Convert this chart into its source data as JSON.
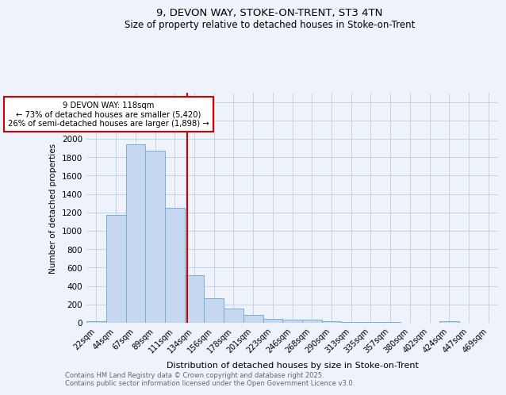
{
  "title1": "9, DEVON WAY, STOKE-ON-TRENT, ST3 4TN",
  "title2": "Size of property relative to detached houses in Stoke-on-Trent",
  "xlabel": "Distribution of detached houses by size in Stoke-on-Trent",
  "ylabel": "Number of detached properties",
  "categories": [
    "22sqm",
    "44sqm",
    "67sqm",
    "89sqm",
    "111sqm",
    "134sqm",
    "156sqm",
    "178sqm",
    "201sqm",
    "223sqm",
    "246sqm",
    "268sqm",
    "290sqm",
    "313sqm",
    "335sqm",
    "357sqm",
    "380sqm",
    "402sqm",
    "424sqm",
    "447sqm",
    "469sqm"
  ],
  "values": [
    20,
    1170,
    1940,
    1870,
    1250,
    520,
    270,
    155,
    90,
    45,
    35,
    35,
    15,
    10,
    8,
    5,
    3,
    2,
    15,
    2,
    1
  ],
  "bar_color": "#c5d8f0",
  "bar_edge_color": "#7aaed6",
  "red_line_x": 4.62,
  "annotation_text": "9 DEVON WAY: 118sqm\n← 73% of detached houses are smaller (5,420)\n26% of semi-detached houses are larger (1,898) →",
  "annotation_box_color": "#ffffff",
  "annotation_box_edge": "#cc0000",
  "ylim": [
    0,
    2500
  ],
  "yticks": [
    0,
    200,
    400,
    600,
    800,
    1000,
    1200,
    1400,
    1600,
    1800,
    2000,
    2200,
    2400
  ],
  "footer1": "Contains HM Land Registry data © Crown copyright and database right 2025.",
  "footer2": "Contains public sector information licensed under the Open Government Licence v3.0.",
  "bg_color": "#eef2fb",
  "grid_color": "#c0cce0"
}
